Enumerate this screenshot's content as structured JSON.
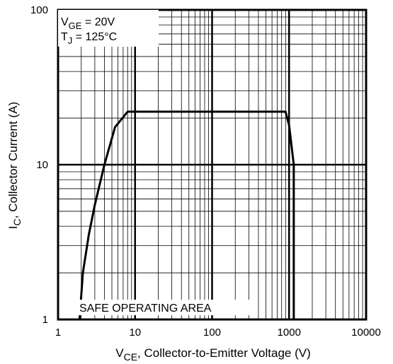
{
  "chart_data": {
    "type": "line",
    "x_scale": "log",
    "y_scale": "log",
    "xlim": [
      1,
      10000
    ],
    "ylim": [
      1,
      100
    ],
    "x_ticks": [
      {
        "value": 1,
        "label": "1"
      },
      {
        "value": 10,
        "label": "10"
      },
      {
        "value": 100,
        "label": "100"
      },
      {
        "value": 1000,
        "label": "1000"
      },
      {
        "value": 10000,
        "label": "10000"
      }
    ],
    "y_ticks": [
      {
        "value": 1,
        "label": "1"
      },
      {
        "value": 10,
        "label": "10"
      },
      {
        "value": 100,
        "label": "100"
      }
    ],
    "grid": true,
    "xlabel": {
      "main": "V",
      "sub": "CE",
      "rest": ", Collector-to-Emitter Voltage (V)"
    },
    "ylabel": {
      "main": "I",
      "sub": "C",
      "rest": ",  Collector Current (A)"
    },
    "conditions": [
      {
        "main": "V",
        "sub": "GE",
        "rest": " = 20V"
      },
      {
        "main": "T",
        "sub": "J",
        "rest": " = 125°C"
      }
    ],
    "annotation": "SAFE OPERATING AREA",
    "series": [
      {
        "x": [
          1.9,
          2.1,
          2.5,
          3.0,
          4.0,
          5.5,
          8.0,
          900,
          1000,
          1150
        ],
        "y": [
          1.0,
          2.0,
          3.5,
          5.5,
          10.0,
          17.5,
          22.0,
          22.0,
          18.0,
          10.0
        ]
      },
      {
        "x": [
          1150,
          1150
        ],
        "y": [
          10.0,
          1.0
        ]
      }
    ],
    "line_color": "#000000"
  }
}
